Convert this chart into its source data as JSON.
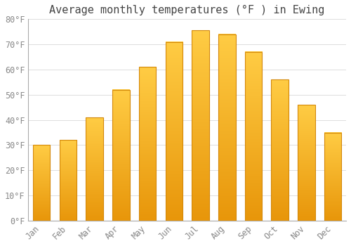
{
  "title": "Average monthly temperatures (°F ) in Ewing",
  "months": [
    "Jan",
    "Feb",
    "Mar",
    "Apr",
    "May",
    "Jun",
    "Jul",
    "Aug",
    "Sep",
    "Oct",
    "Nov",
    "Dec"
  ],
  "temperatures": [
    30,
    32,
    41,
    52,
    61,
    71,
    75.5,
    74,
    67,
    56,
    46,
    35
  ],
  "bar_color_top": "#FFB300",
  "bar_color_bottom": "#E8960A",
  "bar_edge_color": "#D4880A",
  "background_color": "#FFFFFF",
  "plot_bg_color": "#FFFFFF",
  "grid_color": "#DDDDDD",
  "ylim": [
    0,
    80
  ],
  "yticks": [
    0,
    10,
    20,
    30,
    40,
    50,
    60,
    70,
    80
  ],
  "ytick_labels": [
    "0°F",
    "10°F",
    "20°F",
    "30°F",
    "40°F",
    "50°F",
    "60°F",
    "70°F",
    "80°F"
  ],
  "title_fontsize": 11,
  "tick_fontsize": 8.5,
  "tick_color": "#888888",
  "font_family": "monospace",
  "bar_width": 0.65
}
